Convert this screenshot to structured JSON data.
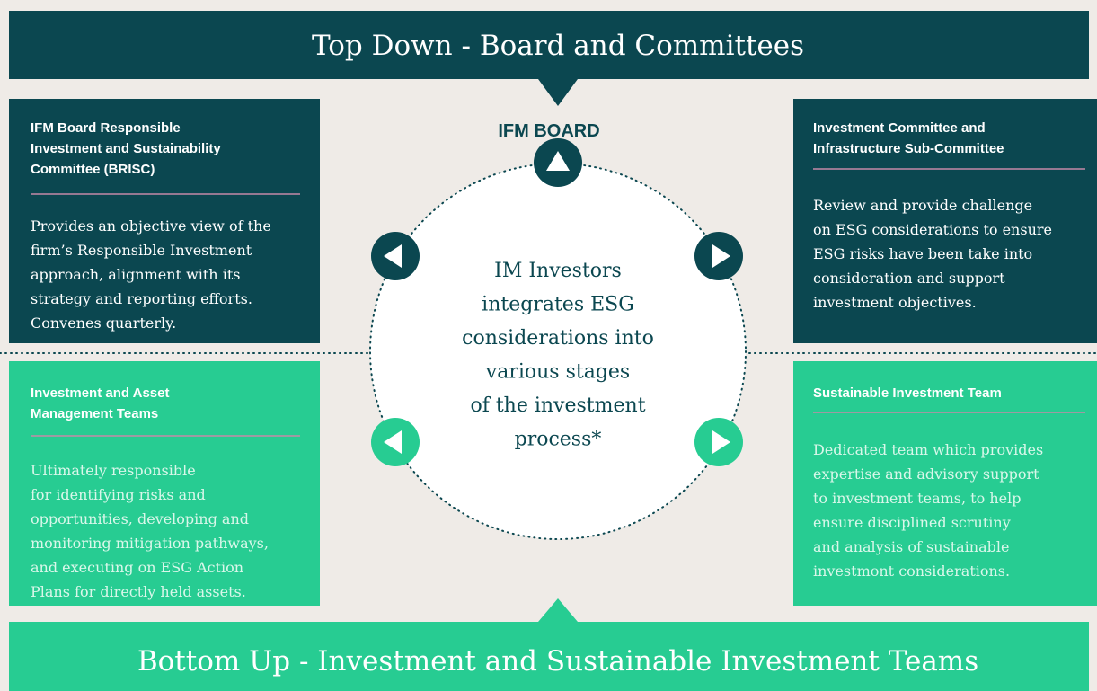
{
  "header": {
    "title": "Top Down - Board and Committees"
  },
  "board_label": "IFM BOARD",
  "center_text": [
    "IM Investors",
    "integrates ESG",
    "considerations into",
    "various stages",
    "of the investment",
    "process*"
  ],
  "boxes": [
    {
      "title": [
        "IFM Board Responsible",
        "Investment and Sustainability",
        "Committee (BRISC)"
      ],
      "body": [
        "Provides an objective view of the",
        "firm’s Responsible Investment",
        "approach, alignment with its",
        "strategy and reporting efforts.",
        "Convenes quarterly."
      ]
    },
    {
      "title": [
        "Investment Committee and",
        "Infrastructure Sub-Committee"
      ],
      "body": [
        "Review and provide challenge",
        "on ESG considerations to ensure",
        "ESG risks have been take into",
        "consideration and support",
        "investment objectives."
      ]
    },
    {
      "title": [
        "Investment and Asset",
        "Management Teams"
      ],
      "body": [
        "Ultimately responsible",
        "for identifying risks and",
        "opportunities, developing and",
        "monitoring mitigation pathways,",
        "and executing on ESG Action",
        "Plans for directly held assets."
      ]
    },
    {
      "title": [
        "Sustainable Investment Team"
      ],
      "body": [
        "Dedicated team which provides",
        "expertise and advisory support",
        "to investment teams, to help",
        "ensure disciplined scrutiny",
        "and analysis of sustainable",
        "investmont considerations."
      ]
    }
  ],
  "footer": {
    "title": "Bottom Up - Investment and Sustainable Investment Teams"
  }
}
